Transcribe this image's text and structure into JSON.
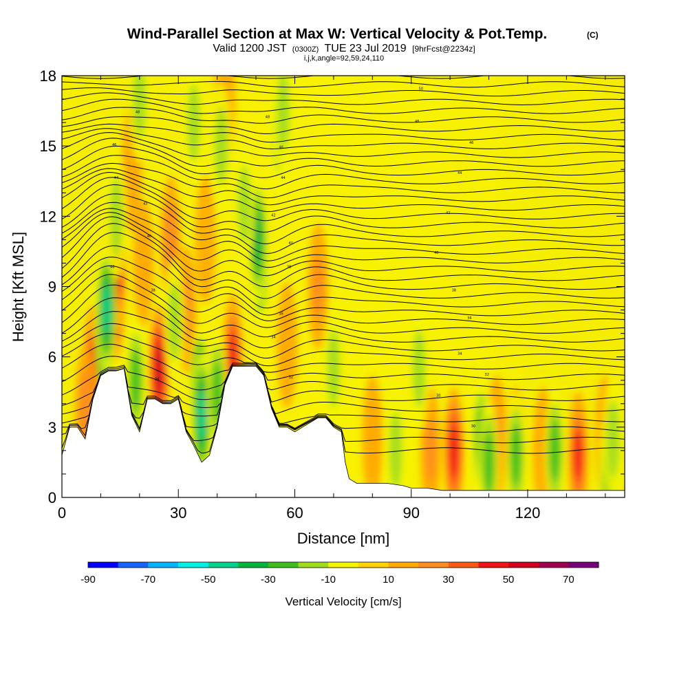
{
  "chart_data": {
    "type": "heatmap",
    "title": "Wind-Parallel Section at Max W: Vertical Velocity & Pot.Temp.",
    "title_unit": "(C)",
    "subtitle_main": "Valid 1200 JST",
    "subtitle_utc": "(0300Z)",
    "subtitle_date": "TUE 23 Jul 2019",
    "subtitle_fcst": "[9hrFcst@2234z]",
    "subtitle2": "i,j,k,angle=92,59,24,110",
    "xlabel": "Distance [nm]",
    "ylabel": "Height [Kft MSL]",
    "xlim": [
      0,
      145
    ],
    "ylim": [
      0,
      18
    ],
    "xticks": [
      0,
      30,
      60,
      90,
      120
    ],
    "yticks": [
      0,
      3,
      6,
      9,
      12,
      15,
      18
    ],
    "colorbar": {
      "label": "Vertical Velocity [cm/s]",
      "range": [
        -90,
        80
      ],
      "tick_labels": [
        -90,
        -70,
        -50,
        -30,
        -10,
        10,
        30,
        50,
        70
      ],
      "colors": [
        "#0000ff",
        "#1464ff",
        "#00b4ff",
        "#00f0e6",
        "#00d28c",
        "#00b43c",
        "#3cbe1e",
        "#a0dc1e",
        "#f5f500",
        "#ffd200",
        "#ffaa00",
        "#ff8c1e",
        "#ff5a14",
        "#f01414",
        "#d2001e",
        "#a00050",
        "#780078"
      ]
    },
    "terrain": [
      [
        0,
        1.8
      ],
      [
        2,
        3.0
      ],
      [
        4,
        3.0
      ],
      [
        6,
        2.5
      ],
      [
        8,
        4.2
      ],
      [
        10,
        5.2
      ],
      [
        12,
        5.4
      ],
      [
        14,
        5.4
      ],
      [
        16,
        5.5
      ],
      [
        18,
        3.5
      ],
      [
        20,
        2.8
      ],
      [
        22,
        4.2
      ],
      [
        24,
        4.2
      ],
      [
        26,
        4.0
      ],
      [
        28,
        4.0
      ],
      [
        30,
        4.2
      ],
      [
        32,
        2.8
      ],
      [
        34,
        2.2
      ],
      [
        36,
        1.5
      ],
      [
        38,
        1.8
      ],
      [
        40,
        3.0
      ],
      [
        42,
        4.8
      ],
      [
        44,
        5.6
      ],
      [
        46,
        5.6
      ],
      [
        48,
        5.6
      ],
      [
        50,
        5.6
      ],
      [
        52,
        5.2
      ],
      [
        54,
        3.8
      ],
      [
        56,
        3.0
      ],
      [
        58,
        3.0
      ],
      [
        60,
        2.8
      ],
      [
        62,
        3.0
      ],
      [
        64,
        3.2
      ],
      [
        66,
        3.4
      ],
      [
        68,
        3.4
      ],
      [
        70,
        3.0
      ],
      [
        72,
        2.8
      ],
      [
        73,
        1.5
      ],
      [
        74,
        0.8
      ],
      [
        76,
        0.6
      ],
      [
        80,
        0.6
      ],
      [
        84,
        0.6
      ],
      [
        88,
        0.5
      ],
      [
        90,
        0.4
      ],
      [
        92,
        0.4
      ],
      [
        94,
        0.4
      ],
      [
        98,
        0.3
      ],
      [
        110,
        0.3
      ],
      [
        120,
        0.3
      ],
      [
        130,
        0.3
      ],
      [
        140,
        0.3
      ],
      [
        145,
        0.3
      ]
    ],
    "updrafts": [
      [
        13.5,
        8.5,
        60
      ],
      [
        14,
        9.8,
        55
      ],
      [
        8,
        5.5,
        45
      ],
      [
        25,
        5.5,
        50
      ],
      [
        44,
        6.0,
        45
      ],
      [
        32,
        8.0,
        25
      ],
      [
        28,
        11.0,
        20
      ],
      [
        66,
        9.0,
        25
      ],
      [
        101,
        2.0,
        40
      ],
      [
        133,
        1.8,
        45
      ],
      [
        6,
        3.8,
        20
      ],
      [
        95,
        2.0,
        25
      ],
      [
        112,
        2.5,
        25
      ],
      [
        117,
        2.0,
        20
      ],
      [
        18,
        14,
        15
      ],
      [
        21,
        10,
        15
      ],
      [
        42,
        17,
        15
      ],
      [
        37,
        11,
        12
      ],
      [
        58,
        6.5,
        15
      ],
      [
        80,
        2.5,
        15
      ],
      [
        124,
        2.0,
        15
      ],
      [
        126,
        1.5,
        15
      ],
      [
        140,
        2.5,
        15
      ]
    ],
    "downdrafts": [
      [
        11,
        7.0,
        -65
      ],
      [
        11.5,
        8.0,
        -50
      ],
      [
        35.5,
        4.5,
        -55
      ],
      [
        36,
        3.5,
        -45
      ],
      [
        51,
        10.0,
        -40
      ],
      [
        50.5,
        11.0,
        -35
      ],
      [
        19,
        5.0,
        -30
      ],
      [
        40,
        4.5,
        -25
      ],
      [
        29,
        7.5,
        -20
      ],
      [
        34,
        16,
        -20
      ],
      [
        41,
        15,
        -20
      ],
      [
        56,
        15.5,
        -20
      ],
      [
        57,
        16.5,
        -20
      ],
      [
        47,
        12.5,
        -20
      ],
      [
        92,
        5.5,
        -20
      ],
      [
        108,
        2.5,
        -30
      ],
      [
        110,
        1.5,
        -25
      ],
      [
        117,
        1.8,
        -25
      ],
      [
        127,
        2.0,
        -25
      ],
      [
        141,
        1.0,
        -25
      ],
      [
        142,
        2.5,
        -20
      ],
      [
        70,
        5.5,
        -20
      ],
      [
        86,
        2.0,
        -15
      ],
      [
        14,
        12,
        -15
      ],
      [
        20,
        17,
        -20
      ]
    ],
    "theta_levels": [
      29.5,
      30,
      30.5,
      31,
      31.5,
      32,
      32.5,
      33,
      33.5,
      34,
      34.5,
      35,
      35.5,
      36,
      36.5,
      37,
      37.5,
      38,
      38.5,
      39,
      39.5,
      40,
      40.5,
      41,
      41.5,
      42,
      42.5,
      43,
      43.5,
      44,
      44.5,
      45,
      45.5,
      46,
      46.5,
      47,
      47.5,
      48,
      48.5,
      49,
      49.5,
      50
    ],
    "contour_labels": [
      {
        "x": 13.5,
        "y": 15.0,
        "t": "46"
      },
      {
        "x": 19.5,
        "y": 16.4,
        "t": "48"
      },
      {
        "x": 14.0,
        "y": 13.6,
        "t": "44"
      },
      {
        "x": 21.5,
        "y": 12.5,
        "t": "43"
      },
      {
        "x": 22.5,
        "y": 11.1,
        "t": "40"
      },
      {
        "x": 13.0,
        "y": 9.8,
        "t": "40"
      },
      {
        "x": 23.5,
        "y": 8.8,
        "t": "38"
      },
      {
        "x": 24.5,
        "y": 5.0,
        "t": "34"
      },
      {
        "x": 53.0,
        "y": 16.2,
        "t": "48"
      },
      {
        "x": 56.5,
        "y": 14.9,
        "t": "46"
      },
      {
        "x": 57.0,
        "y": 13.6,
        "t": "44"
      },
      {
        "x": 54.5,
        "y": 12.0,
        "t": "42"
      },
      {
        "x": 59.0,
        "y": 10.8,
        "t": "40"
      },
      {
        "x": 58.5,
        "y": 9.8,
        "t": "38"
      },
      {
        "x": 56.5,
        "y": 7.8,
        "t": "36"
      },
      {
        "x": 54.5,
        "y": 6.8,
        "t": "34"
      },
      {
        "x": 59.0,
        "y": 5.1,
        "t": "32"
      },
      {
        "x": 92.5,
        "y": 17.4,
        "t": "50"
      },
      {
        "x": 91.5,
        "y": 16.0,
        "t": "48"
      },
      {
        "x": 105.5,
        "y": 15.1,
        "t": "46"
      },
      {
        "x": 102.5,
        "y": 13.8,
        "t": "44"
      },
      {
        "x": 99.5,
        "y": 12.1,
        "t": "42"
      },
      {
        "x": 96.5,
        "y": 10.4,
        "t": "40"
      },
      {
        "x": 101.0,
        "y": 8.8,
        "t": "38"
      },
      {
        "x": 105.0,
        "y": 7.6,
        "t": "36"
      },
      {
        "x": 102.5,
        "y": 6.1,
        "t": "34"
      },
      {
        "x": 109.5,
        "y": 5.2,
        "t": "32"
      },
      {
        "x": 97.0,
        "y": 4.3,
        "t": "30"
      },
      {
        "x": 106.0,
        "y": 3.0,
        "t": "30"
      },
      {
        "x": 69.5,
        "y": 3.0,
        "t": "31"
      }
    ]
  }
}
